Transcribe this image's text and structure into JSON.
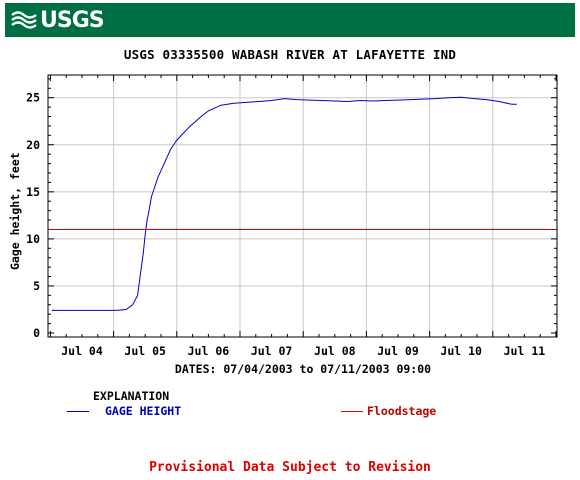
{
  "header": {
    "logo_text": "USGS"
  },
  "chart_data": {
    "type": "line",
    "title": "USGS 03335500 WABASH RIVER AT LAFAYETTE IND",
    "ylabel": "Gage height, feet",
    "xlabel": "DATES: 07/04/2003 to 07/11/2003 09:00",
    "x_ticks": [
      "Jul 04",
      "Jul 05",
      "Jul 06",
      "Jul 07",
      "Jul 08",
      "Jul 09",
      "Jul 10",
      "Jul 11"
    ],
    "y_ticks": [
      "0",
      "5",
      "10",
      "15",
      "20",
      "25"
    ],
    "ylim": [
      0,
      27
    ],
    "grid": true,
    "x_unit": "days since 07/04/2003 00:00",
    "series": [
      {
        "name": "GAGE HEIGHT",
        "color": "#0000cc",
        "x": [
          -0.48,
          0.0,
          0.3,
          0.55,
          0.7,
          0.8,
          0.88,
          0.92,
          0.97,
          1.0,
          1.03,
          1.06,
          1.1,
          1.15,
          1.2,
          1.3,
          1.4,
          1.5,
          1.6,
          1.7,
          1.8,
          1.9,
          2.0,
          2.2,
          2.4,
          2.6,
          2.8,
          3.0,
          3.2,
          3.4,
          3.6,
          3.8,
          4.0,
          4.2,
          4.4,
          4.6,
          4.8,
          5.0,
          5.2,
          5.4,
          5.6,
          5.8,
          6.0,
          6.2,
          6.4,
          6.6,
          6.8,
          6.88
        ],
        "y": [
          2.4,
          2.4,
          2.4,
          2.4,
          2.5,
          3.0,
          4.0,
          6.0,
          8.5,
          10.5,
          12.0,
          13.0,
          14.5,
          15.5,
          16.5,
          18.0,
          19.5,
          20.5,
          21.2,
          21.9,
          22.5,
          23.1,
          23.6,
          24.2,
          24.4,
          24.5,
          24.6,
          24.7,
          24.9,
          24.8,
          24.75,
          24.7,
          24.65,
          24.6,
          24.7,
          24.65,
          24.7,
          24.75,
          24.8,
          24.85,
          24.9,
          25.0,
          25.05,
          24.9,
          24.8,
          24.6,
          24.3,
          24.3
        ]
      },
      {
        "name": "Floodstage",
        "color": "#e00000",
        "x": [
          -0.55,
          7.8
        ],
        "y": [
          11.0,
          11.0
        ]
      }
    ]
  },
  "legend": {
    "title": "EXPLANATION",
    "gage_label": "GAGE HEIGHT",
    "flood_label": "Floodstage"
  },
  "footer": {
    "text": "Provisional Data Subject to Revision"
  }
}
